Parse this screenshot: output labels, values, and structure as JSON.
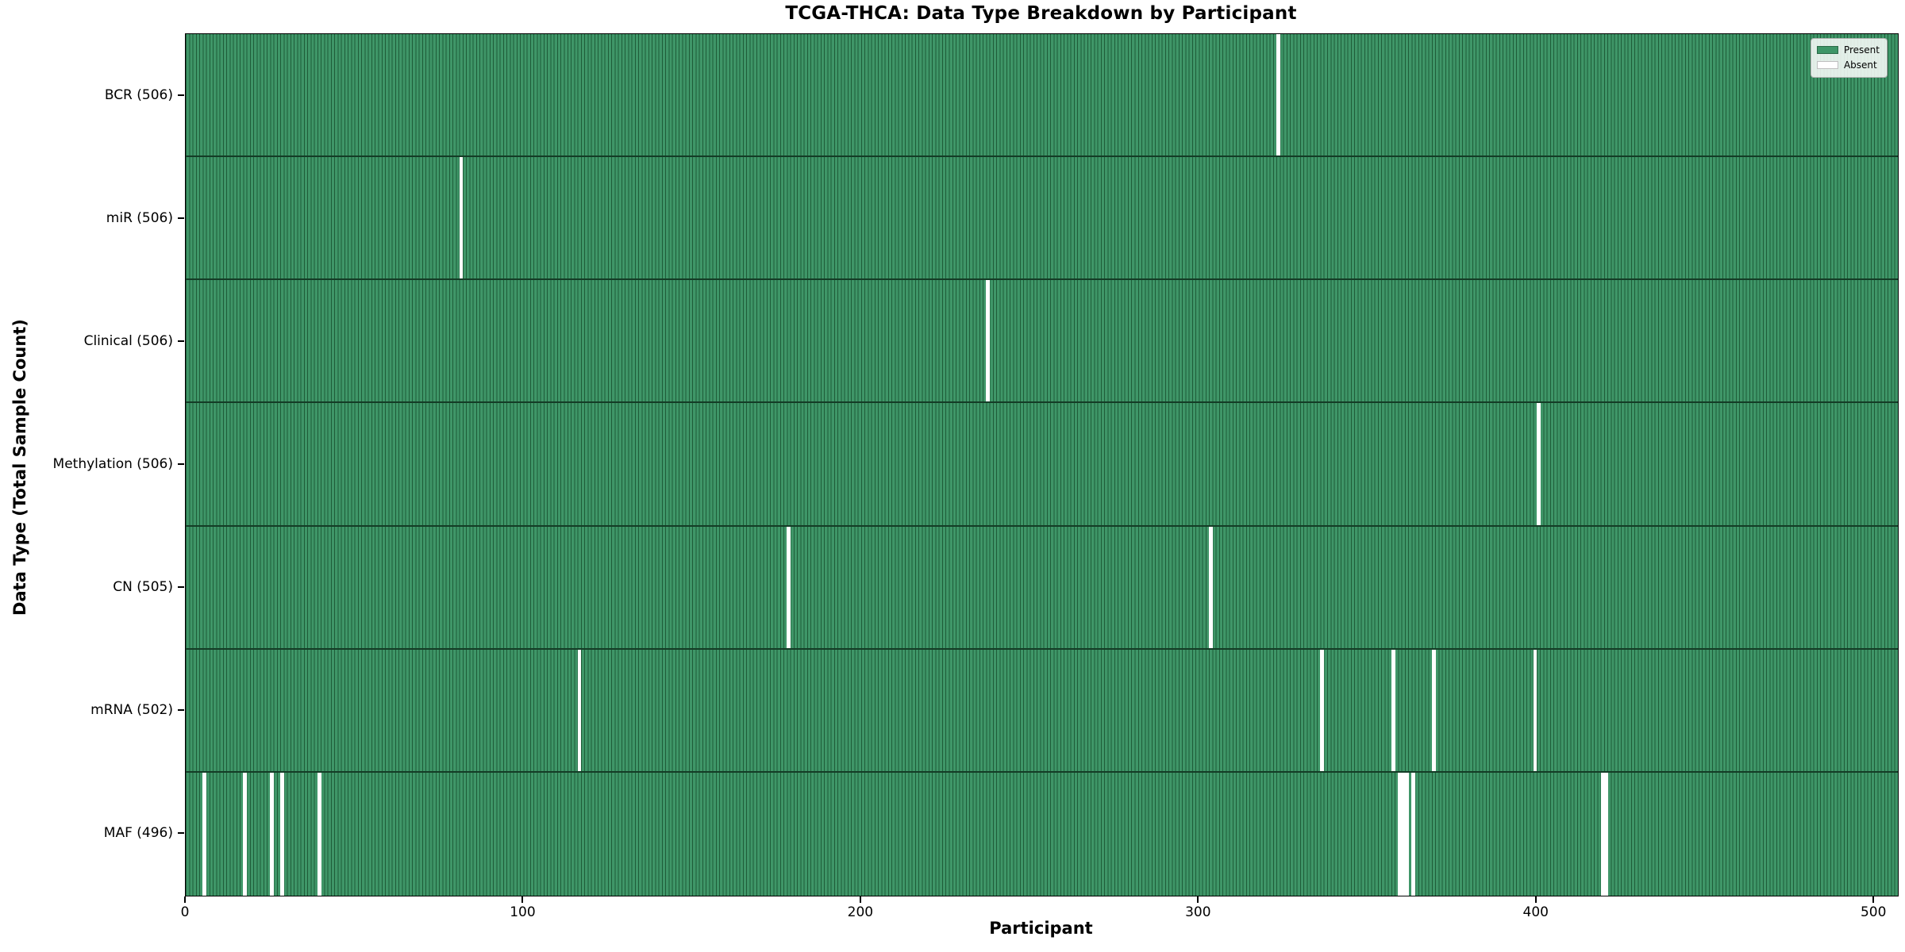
{
  "chart_data": {
    "type": "heatmap",
    "title": "TCGA-THCA: Data Type Breakdown by Participant",
    "xlabel": "Participant",
    "ylabel": "Data Type (Total Sample Count)",
    "n_participants": 507,
    "xlim": [
      0,
      507
    ],
    "x_ticks": [
      0,
      100,
      200,
      300,
      400,
      500
    ],
    "grid": false,
    "legend": {
      "position": "upper right",
      "items": [
        {
          "label": "Present",
          "color": "#3f9668"
        },
        {
          "label": "Absent",
          "color": "#ffffff"
        }
      ]
    },
    "rows": [
      {
        "label": "BCR (506)",
        "data_type": "BCR",
        "present_count": 506,
        "absent_participants": [
          323
        ]
      },
      {
        "label": "miR (506)",
        "data_type": "miR",
        "present_count": 506,
        "absent_participants": [
          81
        ]
      },
      {
        "label": "Clinical (506)",
        "data_type": "Clinical",
        "present_count": 506,
        "absent_participants": [
          237
        ]
      },
      {
        "label": "Methylation (506)",
        "data_type": "Methylation",
        "present_count": 506,
        "absent_participants": [
          400
        ]
      },
      {
        "label": "CN (505)",
        "data_type": "CN",
        "present_count": 505,
        "absent_participants": [
          178,
          303
        ]
      },
      {
        "label": "mRNA (502)",
        "data_type": "mRNA",
        "present_count": 502,
        "absent_participants": [
          116,
          336,
          357,
          369,
          399
        ]
      },
      {
        "label": "MAF (496)",
        "data_type": "MAF",
        "present_count": 496,
        "absent_participants": [
          5,
          17,
          25,
          28,
          39,
          359,
          360,
          361,
          363,
          419,
          420
        ]
      }
    ],
    "colors": {
      "present": "#3f9668",
      "bar_edge": "#1e5c38",
      "absent": "#ffffff",
      "row_divider": "#143c26",
      "plot_border": "#000000",
      "text": "#000000"
    }
  }
}
